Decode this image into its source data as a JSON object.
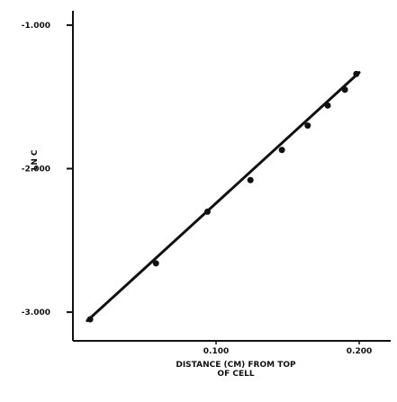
{
  "chart_data": {
    "type": "scatter",
    "title": "",
    "xlabel": "DISTANCE (CM) FROM TOP OF CELL",
    "xlabel_lines": [
      "DISTANCE (CM) FROM TOP",
      "OF CELL"
    ],
    "ylabel": "LN C",
    "xlim": [
      0.0,
      0.222
    ],
    "ylim": [
      -3.2,
      -0.9
    ],
    "x_ticks": [
      0.1,
      0.2
    ],
    "x_tick_labels": [
      "0.100",
      "0.200"
    ],
    "y_ticks": [
      -1.0,
      -2.0,
      -3.0
    ],
    "y_tick_labels": [
      "-1.000",
      "-2.000",
      "-3.000"
    ],
    "grid": false,
    "legend": "none",
    "series": [
      {
        "x": [
          0.012,
          0.058,
          0.094,
          0.124,
          0.146,
          0.164,
          0.178,
          0.19,
          0.198
        ],
        "y": [
          -3.05,
          -2.66,
          -2.3,
          -2.08,
          -1.87,
          -1.7,
          -1.56,
          -1.45,
          -1.34
        ]
      }
    ],
    "fit_line": {
      "x": [
        0.01,
        0.2
      ],
      "y": [
        -3.06,
        -1.33
      ]
    },
    "colors": {
      "ink": "#111111",
      "background": "#ffffff"
    }
  }
}
